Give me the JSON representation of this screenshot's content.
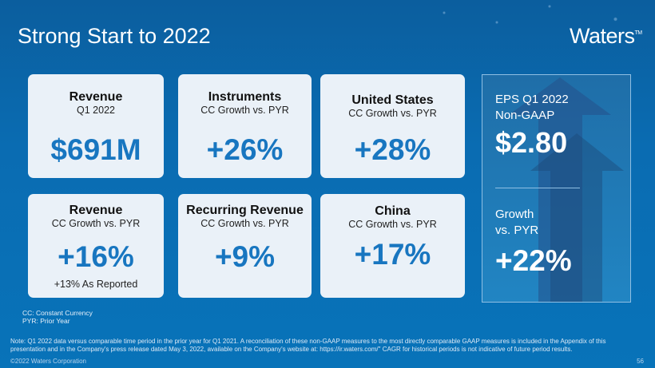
{
  "header": {
    "title": "Strong Start to 2022",
    "logo": "Waters",
    "logo_tm": "TM"
  },
  "cards": [
    {
      "heading": "Revenue",
      "sub": "Q1 2022",
      "value": "$691M"
    },
    {
      "heading": "Instruments",
      "sub": "CC Growth vs. PYR",
      "value": "+26%"
    },
    {
      "heading": "United States",
      "sub": "CC Growth vs. PYR",
      "value": "+28%"
    },
    {
      "heading": "Revenue",
      "sub": "CC Growth vs. PYR",
      "value": "+16%",
      "note": "+13% As Reported"
    },
    {
      "heading": "Recurring Revenue",
      "sub": "CC Growth vs. PYR",
      "value": "+9%"
    },
    {
      "heading": "China",
      "sub": "CC Growth vs. PYR",
      "value": "+17%"
    }
  ],
  "eps": {
    "label1": "EPS Q1 2022",
    "label2": "Non-GAAP",
    "value": "$2.80",
    "growth1": "Growth",
    "growth2": "vs. PYR",
    "growth_value": "+22%"
  },
  "legend": {
    "cc": "CC: Constant Currency",
    "pyr": "PYR: Prior Year"
  },
  "footer": {
    "note": "Note: Q1 2022 data versus comparable time period in the prior year for Q1 2021. A reconciliation of these non-GAAP measures to the most directly comparable GAAP measures is included in the Appendix of this presentation and in the Company's press release dated May 3, 2022, available on the Company's website at: https://ir.waters.com/\" CAGR for historical periods is not indicative of future period results.",
    "copyright": "©2022 Waters Corporation",
    "page": "56"
  }
}
